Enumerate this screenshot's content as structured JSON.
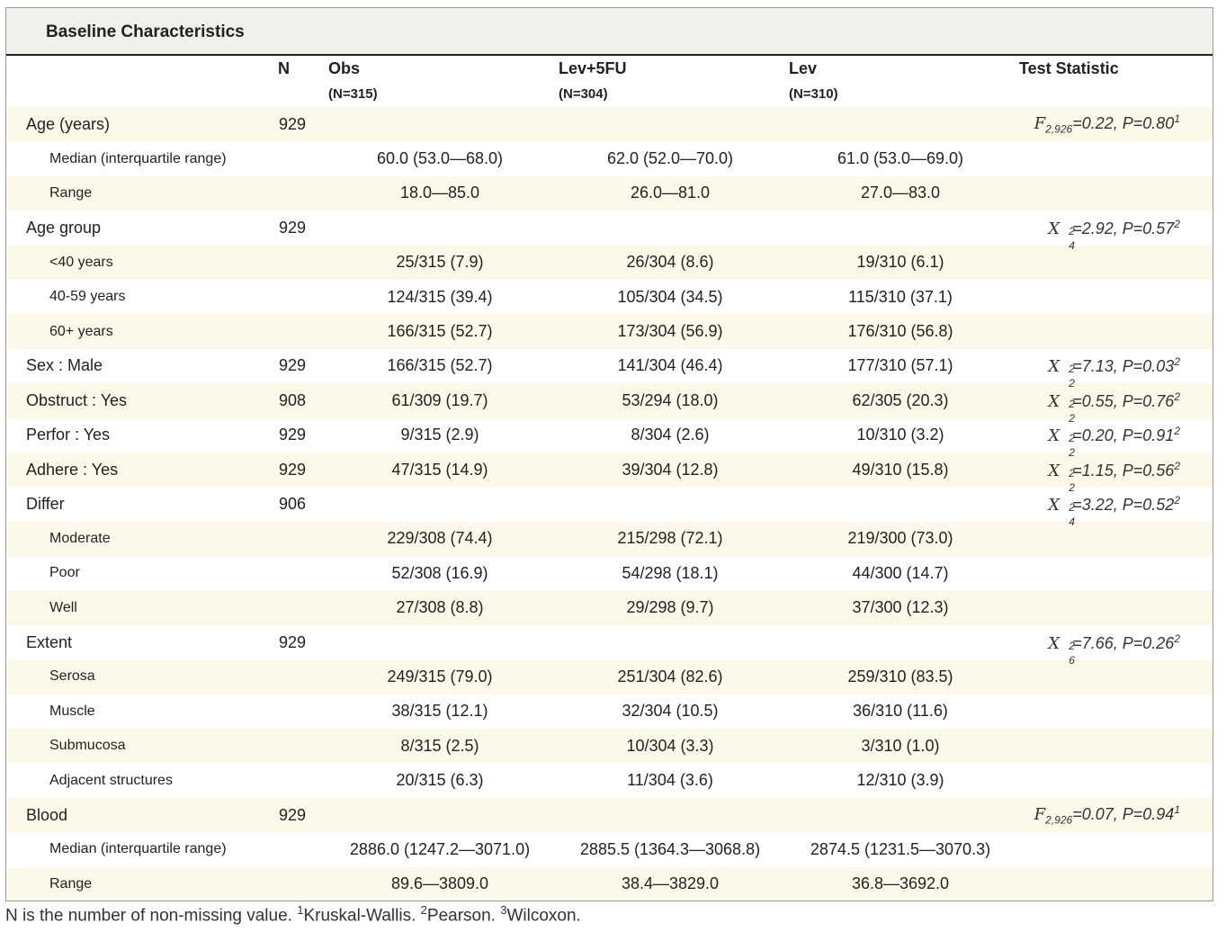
{
  "title": "Baseline Characteristics",
  "header": {
    "n": "N",
    "groups": [
      {
        "name": "Obs",
        "count": "(N=315)"
      },
      {
        "name": "Lev+5FU",
        "count": "(N=304)"
      },
      {
        "name": "Lev",
        "count": "(N=310)"
      }
    ],
    "test": "Test Statistic"
  },
  "rows": [
    {
      "label": "Age (years)",
      "indent": false,
      "shaded": true,
      "n": "929",
      "obs": "",
      "lev5fu": "",
      "lev": "",
      "stat": {
        "kind": "F",
        "sym": "F",
        "sub": "2,926",
        "text": "=0.22, P=0.80",
        "sup": "1"
      }
    },
    {
      "label": "Median (interquartile range)",
      "indent": true,
      "shaded": false,
      "n": "",
      "obs": "60.0 (53.0—68.0)",
      "lev5fu": "62.0 (52.0—70.0)",
      "lev": "61.0 (53.0—69.0)",
      "stat": null
    },
    {
      "label": "Range",
      "indent": true,
      "shaded": true,
      "n": "",
      "obs": "18.0—85.0",
      "lev5fu": "26.0—81.0",
      "lev": "27.0—83.0",
      "stat": null
    },
    {
      "label": "Age group",
      "indent": false,
      "shaded": false,
      "n": "929",
      "obs": "",
      "lev5fu": "",
      "lev": "",
      "stat": {
        "kind": "chi",
        "sym": "X",
        "sub": "4",
        "text": "=2.92, P=0.57",
        "sup": "2"
      }
    },
    {
      "label": "<40 years",
      "indent": true,
      "shaded": true,
      "n": "",
      "obs": "25/315 (7.9)",
      "lev5fu": "26/304 (8.6)",
      "lev": "19/310 (6.1)",
      "stat": null
    },
    {
      "label": "40-59 years",
      "indent": true,
      "shaded": false,
      "n": "",
      "obs": "124/315 (39.4)",
      "lev5fu": "105/304 (34.5)",
      "lev": "115/310 (37.1)",
      "stat": null
    },
    {
      "label": "60+ years",
      "indent": true,
      "shaded": true,
      "n": "",
      "obs": "166/315 (52.7)",
      "lev5fu": "173/304 (56.9)",
      "lev": "176/310 (56.8)",
      "stat": null
    },
    {
      "label": "Sex : Male",
      "indent": false,
      "shaded": false,
      "n": "929",
      "obs": "166/315 (52.7)",
      "lev5fu": "141/304 (46.4)",
      "lev": "177/310 (57.1)",
      "stat": {
        "kind": "chi",
        "sym": "X",
        "sub": "2",
        "text": "=7.13, P=0.03",
        "sup": "2"
      }
    },
    {
      "label": "Obstruct : Yes",
      "indent": false,
      "shaded": true,
      "n": "908",
      "obs": "61/309 (19.7)",
      "lev5fu": "53/294 (18.0)",
      "lev": "62/305 (20.3)",
      "stat": {
        "kind": "chi",
        "sym": "X",
        "sub": "2",
        "text": "=0.55, P=0.76",
        "sup": "2"
      }
    },
    {
      "label": "Perfor : Yes",
      "indent": false,
      "shaded": false,
      "n": "929",
      "obs": "9/315 (2.9)",
      "lev5fu": "8/304 (2.6)",
      "lev": "10/310 (3.2)",
      "stat": {
        "kind": "chi",
        "sym": "X",
        "sub": "2",
        "text": "=0.20, P=0.91",
        "sup": "2"
      }
    },
    {
      "label": "Adhere : Yes",
      "indent": false,
      "shaded": true,
      "n": "929",
      "obs": "47/315 (14.9)",
      "lev5fu": "39/304 (12.8)",
      "lev": "49/310 (15.8)",
      "stat": {
        "kind": "chi",
        "sym": "X",
        "sub": "2",
        "text": "=1.15, P=0.56",
        "sup": "2"
      }
    },
    {
      "label": "Differ",
      "indent": false,
      "shaded": false,
      "n": "906",
      "obs": "",
      "lev5fu": "",
      "lev": "",
      "stat": {
        "kind": "chi",
        "sym": "X",
        "sub": "4",
        "text": "=3.22, P=0.52",
        "sup": "2"
      }
    },
    {
      "label": "Moderate",
      "indent": true,
      "shaded": true,
      "n": "",
      "obs": "229/308 (74.4)",
      "lev5fu": "215/298 (72.1)",
      "lev": "219/300 (73.0)",
      "stat": null
    },
    {
      "label": "Poor",
      "indent": true,
      "shaded": false,
      "n": "",
      "obs": "52/308 (16.9)",
      "lev5fu": "54/298 (18.1)",
      "lev": "44/300 (14.7)",
      "stat": null
    },
    {
      "label": "Well",
      "indent": true,
      "shaded": true,
      "n": "",
      "obs": "27/308 (8.8)",
      "lev5fu": "29/298 (9.7)",
      "lev": "37/300 (12.3)",
      "stat": null
    },
    {
      "label": "Extent",
      "indent": false,
      "shaded": false,
      "n": "929",
      "obs": "",
      "lev5fu": "",
      "lev": "",
      "stat": {
        "kind": "chi",
        "sym": "X",
        "sub": "6",
        "text": "=7.66, P=0.26",
        "sup": "2"
      }
    },
    {
      "label": "Serosa",
      "indent": true,
      "shaded": true,
      "n": "",
      "obs": "249/315 (79.0)",
      "lev5fu": "251/304 (82.6)",
      "lev": "259/310 (83.5)",
      "stat": null
    },
    {
      "label": "Muscle",
      "indent": true,
      "shaded": false,
      "n": "",
      "obs": "38/315 (12.1)",
      "lev5fu": "32/304 (10.5)",
      "lev": "36/310 (11.6)",
      "stat": null
    },
    {
      "label": "Submucosa",
      "indent": true,
      "shaded": true,
      "n": "",
      "obs": "8/315 (2.5)",
      "lev5fu": "10/304 (3.3)",
      "lev": "3/310 (1.0)",
      "stat": null
    },
    {
      "label": "Adjacent structures",
      "indent": true,
      "shaded": false,
      "n": "",
      "obs": "20/315 (6.3)",
      "lev5fu": "11/304 (3.6)",
      "lev": "12/310 (3.9)",
      "stat": null
    },
    {
      "label": "Blood",
      "indent": false,
      "shaded": true,
      "n": "929",
      "obs": "",
      "lev5fu": "",
      "lev": "",
      "stat": {
        "kind": "F",
        "sym": "F",
        "sub": "2,926",
        "text": "=0.07, P=0.94",
        "sup": "1"
      }
    },
    {
      "label": "Median (interquartile range)",
      "indent": true,
      "shaded": false,
      "n": "",
      "obs": "2886.0 (1247.2—3071.0)",
      "lev5fu": "2885.5 (1364.3—3068.8)",
      "lev": "2874.5 (1231.5—3070.3)",
      "stat": null
    },
    {
      "label": "Range",
      "indent": true,
      "shaded": true,
      "n": "",
      "obs": "89.6—3809.0",
      "lev5fu": "38.4—3829.0",
      "lev": "36.8—3692.0",
      "stat": null
    }
  ],
  "footnote": {
    "text": "N is the number of non-missing value. ",
    "notes": [
      {
        "sup": "1",
        "text": "Kruskal-Wallis. "
      },
      {
        "sup": "2",
        "text": "Pearson. "
      },
      {
        "sup": "3",
        "text": "Wilcoxon."
      }
    ]
  }
}
